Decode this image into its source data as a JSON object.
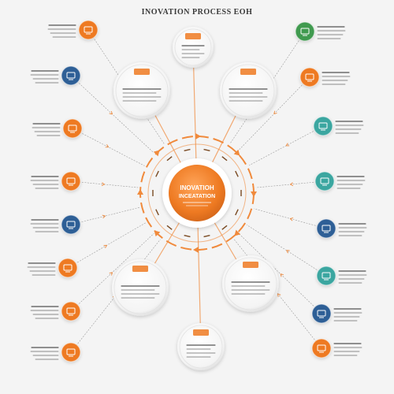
{
  "title": "INOVATION PROCESS EOH",
  "hub": {
    "line1": "INOVATIOH",
    "line2": "INCEATATION",
    "color": "#ee7a22"
  },
  "colors": {
    "orange": "#ee7a22",
    "blue": "#2f5f96",
    "teal": "#3aa6a0",
    "green": "#3f9a4f",
    "bubble": "#ffffff",
    "ring": "#f08a3c"
  },
  "outer_nodes": [
    {
      "id": "n1",
      "color": "orange",
      "icon": "chair-icon",
      "side": "left"
    },
    {
      "id": "n2",
      "color": "blue",
      "icon": "monitor-icon",
      "side": "left"
    },
    {
      "id": "n3",
      "color": "orange",
      "icon": "document-icon",
      "side": "left"
    },
    {
      "id": "n4",
      "color": "orange",
      "icon": "clipboard-icon",
      "side": "left"
    },
    {
      "id": "n5",
      "color": "blue",
      "icon": "laptop-icon",
      "side": "left"
    },
    {
      "id": "n6",
      "color": "orange",
      "icon": "monitor-icon",
      "side": "left"
    },
    {
      "id": "n7",
      "color": "orange",
      "icon": "pencil-icon",
      "side": "left"
    },
    {
      "id": "n8",
      "color": "orange",
      "icon": "mug-icon",
      "side": "left"
    },
    {
      "id": "n9",
      "color": "green",
      "icon": "mobile-icon",
      "side": "right"
    },
    {
      "id": "n10",
      "color": "orange",
      "icon": "tablet-icon",
      "side": "right"
    },
    {
      "id": "n11",
      "color": "teal",
      "icon": "laptop-icon",
      "side": "right"
    },
    {
      "id": "n12",
      "color": "teal",
      "icon": "tablet-icon",
      "side": "right"
    },
    {
      "id": "n13",
      "color": "blue",
      "icon": "laptop-icon",
      "side": "right"
    },
    {
      "id": "n14",
      "color": "teal",
      "icon": "phone-icon",
      "side": "right"
    },
    {
      "id": "n15",
      "color": "blue",
      "icon": "monitor-icon",
      "side": "right"
    },
    {
      "id": "n16",
      "color": "orange",
      "icon": "pencil-icon",
      "side": "right"
    }
  ],
  "inner_bubbles": [
    {
      "id": "b1",
      "icon": "lamp-icon"
    },
    {
      "id": "b2",
      "icon": "chart-icon"
    },
    {
      "id": "b3",
      "icon": "document-icon"
    },
    {
      "id": "b4",
      "icon": "hand-icon"
    },
    {
      "id": "b5",
      "icon": "chart-icon"
    },
    {
      "id": "b6",
      "icon": "book-icon"
    }
  ]
}
